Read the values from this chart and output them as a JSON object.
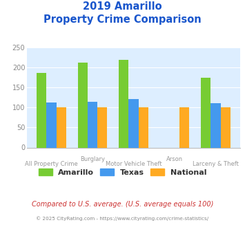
{
  "title_line1": "2019 Amarillo",
  "title_line2": "Property Crime Comparison",
  "title_color": "#1a56cc",
  "categories": [
    "All Property Crime",
    "Burglary",
    "Motor Vehicle Theft",
    "Arson",
    "Larceny & Theft"
  ],
  "top_xlabels": {
    "1": "Burglary",
    "3": "Arson"
  },
  "bot_xlabels": {
    "0": "All Property Crime",
    "2": "Motor Vehicle Theft",
    "4": "Larceny & Theft"
  },
  "amarillo": [
    186,
    212,
    220,
    0,
    175
  ],
  "texas": [
    113,
    115,
    122,
    0,
    111
  ],
  "national": [
    100,
    100,
    100,
    100,
    100
  ],
  "bar_colors": [
    "#77cc33",
    "#4499ee",
    "#ffaa22"
  ],
  "legend_labels": [
    "Amarillo",
    "Texas",
    "National"
  ],
  "ylim": [
    0,
    250
  ],
  "yticks": [
    0,
    50,
    100,
    150,
    200,
    250
  ],
  "plot_bg": "#ddeeff",
  "fig_bg": "#ffffff",
  "footnote": "Compared to U.S. average. (U.S. average equals 100)",
  "footnote2": "© 2025 CityRating.com - https://www.cityrating.com/crime-statistics/",
  "footnote_color": "#cc3333",
  "footnote2_color": "#888888",
  "grid_color": "#ffffff",
  "tick_color": "#888888",
  "label_color": "#999999"
}
